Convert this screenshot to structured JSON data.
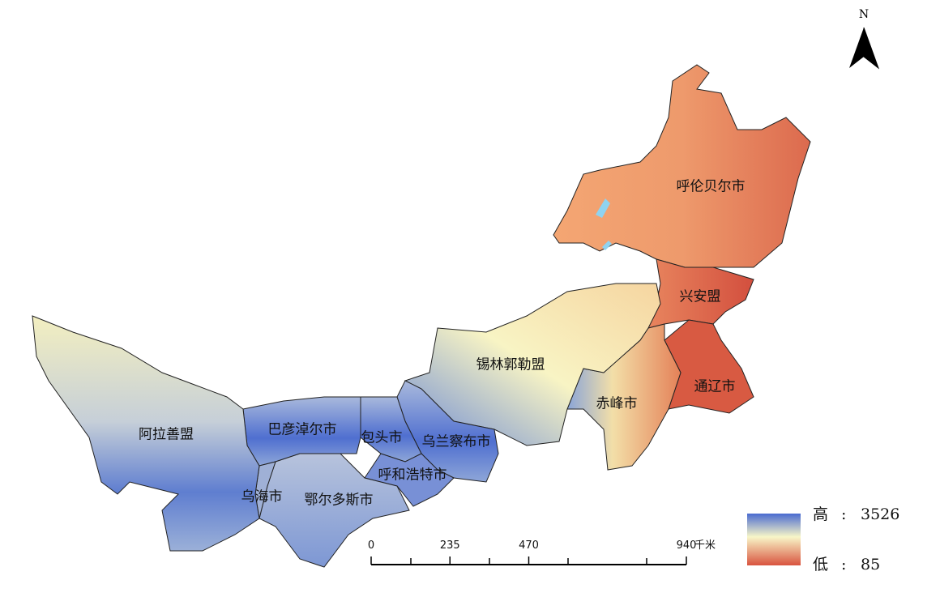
{
  "north_arrow": {
    "label": "N"
  },
  "regions": [
    {
      "label": "呼伦贝尔市"
    },
    {
      "label": "兴安盟"
    },
    {
      "label": "通辽市"
    },
    {
      "label": "赤峰市"
    },
    {
      "label": "锡林郭勒盟"
    },
    {
      "label": "乌兰察布市"
    },
    {
      "label": "包头市"
    },
    {
      "label": "呼和浩特市"
    },
    {
      "label": "巴彦淖尔市"
    },
    {
      "label": "鄂尔多斯市"
    },
    {
      "label": "乌海市"
    },
    {
      "label": "阿拉善盟"
    }
  ],
  "legend": {
    "high": {
      "label": "高",
      "separator": ":",
      "value": 3526
    },
    "low": {
      "label": "低",
      "separator": ":",
      "value": 85
    }
  },
  "scale_bar": {
    "ticks": [
      0,
      235,
      470,
      940
    ],
    "unit": "千米"
  }
}
